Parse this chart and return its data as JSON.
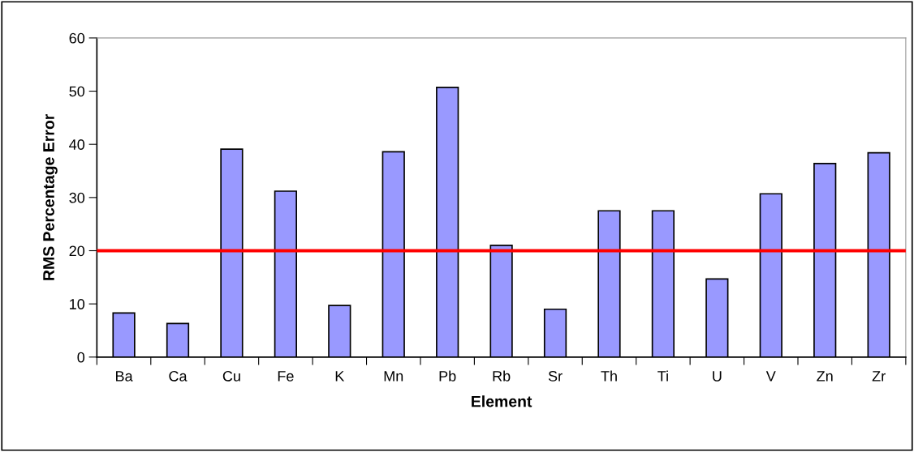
{
  "chart_data": {
    "type": "bar",
    "xlabel": "Element",
    "ylabel": "RMS Percentage Error",
    "categories": [
      "Ba",
      "Ca",
      "Cu",
      "Fe",
      "K",
      "Mn",
      "Pb",
      "Rb",
      "Sr",
      "Th",
      "Ti",
      "U",
      "V",
      "Zn",
      "Zr"
    ],
    "values": [
      8.3,
      6.3,
      39.1,
      31.2,
      9.7,
      38.6,
      50.7,
      21.0,
      9.0,
      27.5,
      27.5,
      14.7,
      30.7,
      36.4,
      38.4
    ],
    "color": "#9999ff",
    "ylim": [
      0,
      60
    ],
    "yticks": [
      0,
      10,
      20,
      30,
      40,
      50,
      60
    ],
    "grid": false,
    "ref_lines": [
      {
        "axis": "y",
        "value": 20,
        "color": "#ff0000",
        "line_style": "solid"
      }
    ]
  }
}
